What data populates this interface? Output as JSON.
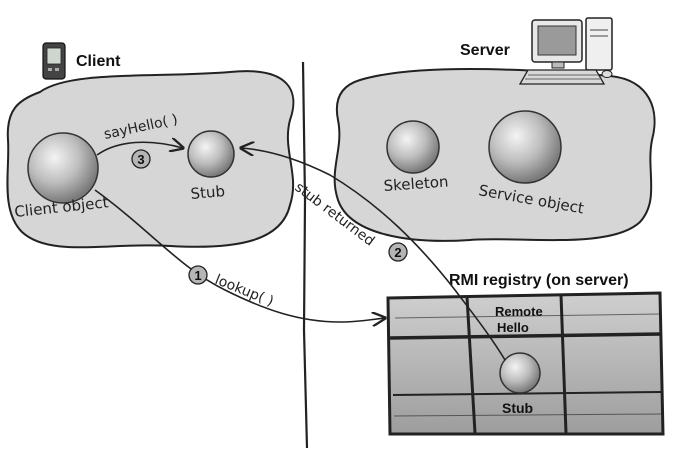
{
  "client": {
    "title": "Client",
    "client_object_label": "Client object",
    "stub_label": "Stub",
    "call_label": "sayHello( )",
    "call_step": "3"
  },
  "server": {
    "title": "Server",
    "skeleton_label": "Skeleton",
    "service_label": "Service object"
  },
  "registry": {
    "title": "RMI registry (on server)",
    "entry_name_line1": "Remote",
    "entry_name_line2": "Hello",
    "entry_stub_label": "Stub"
  },
  "flows": {
    "lookup_label": "lookup( )",
    "lookup_step": "1",
    "returned_label": "stub returned",
    "returned_step": "2"
  },
  "icons": {
    "client_device": "pda-icon",
    "server_device": "desktop-computer-icon"
  }
}
